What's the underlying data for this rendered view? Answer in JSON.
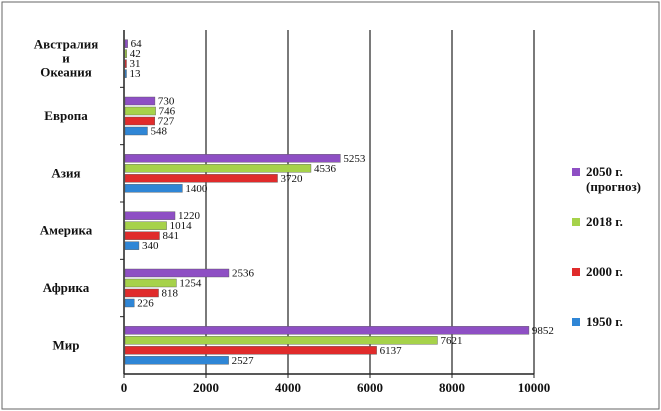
{
  "chart_data": {
    "type": "bar",
    "orientation": "horizontal",
    "categories": [
      "Австралия и Океания",
      "Европа",
      "Азия",
      "Америка",
      "Африка",
      "Мир"
    ],
    "category_lines": [
      [
        "Австралия",
        "и",
        "Океания"
      ],
      [
        "Европа"
      ],
      [
        "Азия"
      ],
      [
        "Америка"
      ],
      [
        "Африка"
      ],
      [
        "Мир"
      ]
    ],
    "series": [
      {
        "name": "2050 г. (прогноз)",
        "name_lines": [
          "2050 г.",
          "(прогноз)"
        ],
        "color": "#8e4fc4",
        "values": [
          64,
          730,
          5253,
          1220,
          2536,
          9852
        ]
      },
      {
        "name": "2018 г.",
        "name_lines": [
          "2018 г."
        ],
        "color": "#a6d24a",
        "values": [
          42,
          746,
          4536,
          1014,
          1254,
          7621
        ]
      },
      {
        "name": "2000 г.",
        "name_lines": [
          "2000 г."
        ],
        "color": "#e02b2b",
        "values": [
          31,
          727,
          3720,
          841,
          818,
          6137
        ]
      },
      {
        "name": "1950 г.",
        "name_lines": [
          "1950 г."
        ],
        "color": "#2f86d6",
        "values": [
          13,
          548,
          1400,
          340,
          226,
          2527
        ]
      }
    ],
    "x_ticks": [
      0,
      2000,
      4000,
      6000,
      8000,
      10000
    ],
    "xlim": [
      0,
      10000
    ],
    "grid": true,
    "legend_position": "right"
  }
}
